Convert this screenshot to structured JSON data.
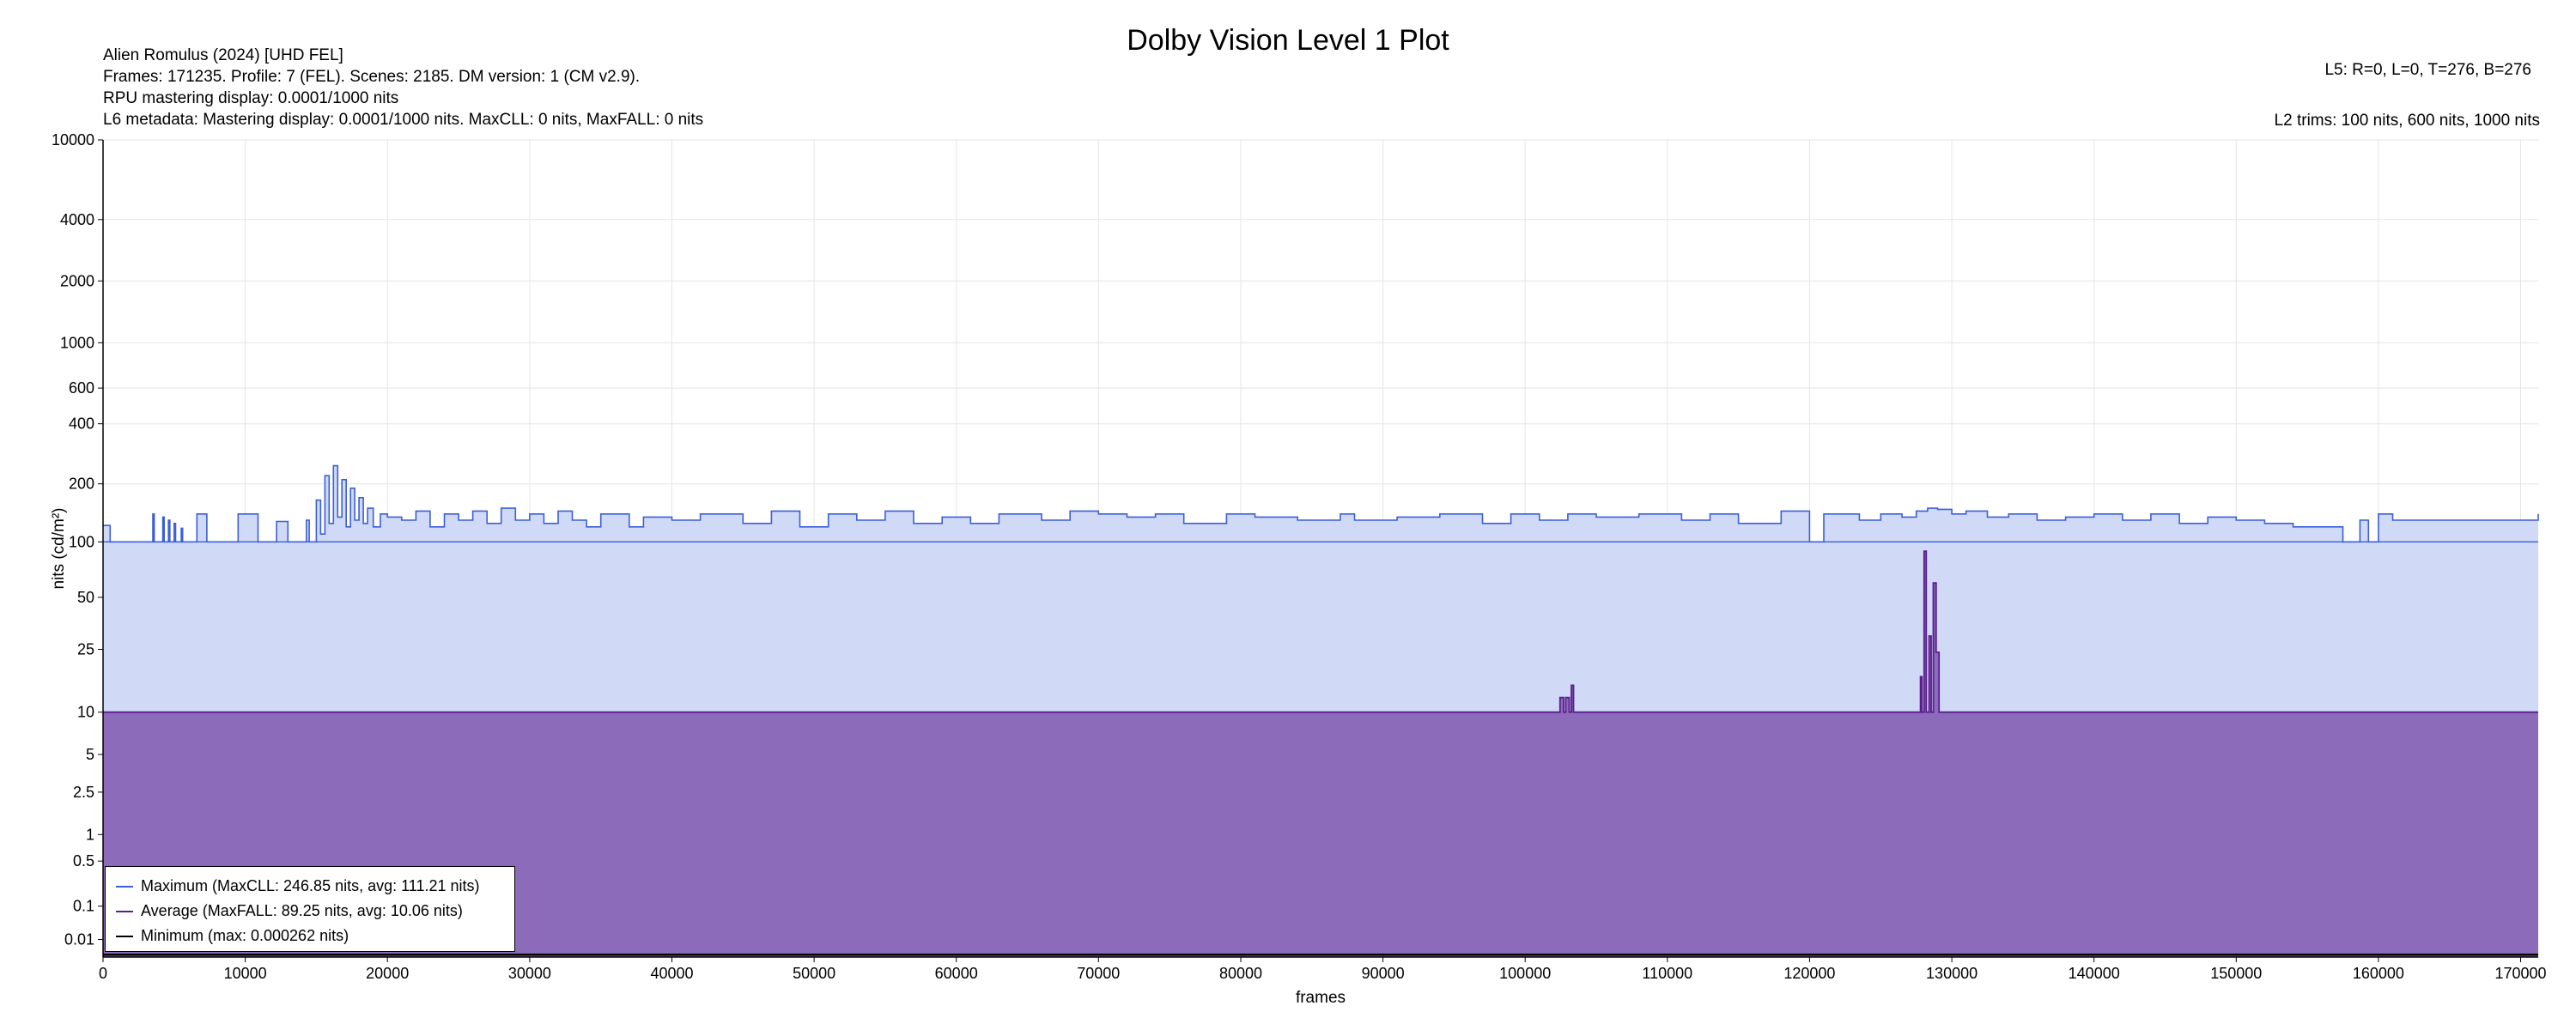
{
  "chart_data": {
    "type": "area",
    "title": "Dolby Vision Level 1 Plot",
    "info_left": [
      "Alien Romulus (2024) [UHD FEL]",
      "Frames: 171235. Profile: 7 (FEL). Scenes: 2185. DM version: 1 (CM v2.9).",
      "RPU mastering display: 0.0001/1000 nits",
      "L6 metadata: Mastering display: 0.0001/1000 nits. MaxCLL: 0 nits, MaxFALL: 0 nits"
    ],
    "info_right": [
      "L5: R=0, L=0, T=276, B=276",
      "L2 trims: 100 nits, 600 nits, 1000 nits"
    ],
    "xlabel": "frames",
    "ylabel": "nits (cd/m²)",
    "xlim": [
      0,
      171235
    ],
    "ylim": [
      0,
      10000
    ],
    "y_scale": "PQ",
    "x_ticks": [
      0,
      10000,
      20000,
      30000,
      40000,
      50000,
      60000,
      70000,
      80000,
      90000,
      100000,
      110000,
      120000,
      130000,
      140000,
      150000,
      160000,
      170000
    ],
    "y_ticks": [
      "0.01",
      "0.1",
      "0.5",
      "1",
      "2.5",
      "5",
      "10",
      "25",
      "50",
      "100",
      "200",
      "400",
      "600",
      "1000",
      "2000",
      "4000",
      "10000"
    ],
    "grid": true,
    "legend_position": "bottom-left",
    "series": [
      {
        "name": "Maximum (MaxCLL: 246.85 nits, avg: 111.21 nits)",
        "color": "#3b5fd9",
        "fill": "#d0d9f6",
        "baseline": 100,
        "x": [
          0,
          500,
          500,
          3300,
          3500,
          3600,
          4200,
          4300,
          4600,
          4700,
          5000,
          5100,
          5500,
          5600,
          6200,
          6600,
          7000,
          7300,
          7700,
          7800,
          9300,
          9500,
          10700,
          10900,
          12000,
          12200,
          13000,
          13200,
          14300,
          14500,
          15000,
          15300,
          15600,
          15900,
          16200,
          16500,
          16800,
          17100,
          17400,
          17700,
          18000,
          18300,
          18600,
          19000,
          19500,
          20000,
          21000,
          22000,
          23000,
          24000,
          25000,
          26000,
          27000,
          28000,
          29000,
          30000,
          31000,
          32000,
          33000,
          34000,
          35000,
          37000,
          38000,
          40000,
          42000,
          45000,
          47000,
          49000,
          51000,
          53000,
          55000,
          57000,
          59000,
          61000,
          63000,
          66000,
          68000,
          70000,
          72000,
          74000,
          76000,
          79000,
          81000,
          84000,
          87000,
          88000,
          91000,
          94000,
          97000,
          99000,
          101000,
          103000,
          105000,
          108000,
          111000,
          113000,
          115000,
          118000,
          120000,
          121000,
          123500,
          125000,
          126500,
          127500,
          128300,
          129000,
          130000,
          131000,
          132500,
          134000,
          136000,
          138000,
          140000,
          142000,
          144000,
          146000,
          148000,
          150000,
          152000,
          154000,
          156000,
          157500,
          158400,
          158700,
          159300,
          159600,
          160000,
          160800,
          161000,
          169000,
          171235
        ],
        "values": [
          122,
          122,
          100,
          100,
          140,
          100,
          135,
          100,
          130,
          100,
          125,
          100,
          118,
          100,
          100,
          140,
          140,
          100,
          100,
          100,
          100,
          140,
          140,
          100,
          100,
          128,
          100,
          100,
          130,
          100,
          165,
          110,
          220,
          125,
          246.85,
          135,
          210,
          120,
          190,
          130,
          170,
          125,
          150,
          120,
          140,
          135,
          130,
          145,
          120,
          140,
          130,
          145,
          125,
          150,
          130,
          140,
          125,
          145,
          130,
          120,
          140,
          120,
          135,
          130,
          140,
          125,
          145,
          120,
          140,
          130,
          145,
          125,
          135,
          125,
          140,
          130,
          145,
          140,
          135,
          140,
          125,
          140,
          135,
          130,
          140,
          130,
          135,
          140,
          125,
          140,
          130,
          140,
          135,
          140,
          130,
          140,
          125,
          145,
          100,
          140,
          130,
          140,
          135,
          145,
          150,
          148,
          140,
          145,
          135,
          140,
          130,
          135,
          140,
          130,
          140,
          125,
          135,
          130,
          125,
          120,
          120,
          100,
          100,
          130,
          100,
          100,
          140,
          140,
          130,
          130,
          140
        ]
      },
      {
        "name": "Average (MaxFALL: 89.25 nits, avg: 10.06 nits)",
        "color": "#5b1e8c",
        "fill": "#8c6bbb",
        "baseline": 10,
        "x": [
          0,
          102300,
          102450,
          102700,
          102850,
          103100,
          103250,
          103400,
          127600,
          127800,
          127900,
          128050,
          128200,
          128400,
          128550,
          128700,
          128900,
          129100,
          171235
        ],
        "values": [
          10,
          10,
          12.5,
          10,
          12.5,
          10,
          15,
          10,
          10,
          17,
          10,
          89.25,
          10,
          30,
          10,
          60,
          24,
          10,
          10
        ]
      },
      {
        "name": "Minimum (max: 0.000262 nits)",
        "color": "#000000",
        "x": [
          0,
          171235
        ],
        "values": [
          0.000262,
          0.000262
        ]
      }
    ]
  }
}
